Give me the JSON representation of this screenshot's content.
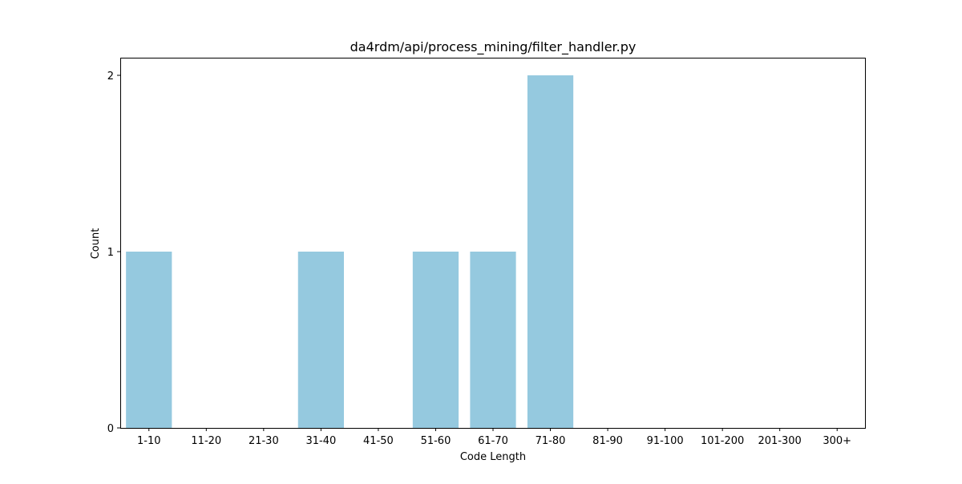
{
  "chart_data": {
    "type": "bar",
    "title": "da4rdm/api/process_mining/filter_handler.py",
    "xlabel": "Code Length",
    "ylabel": "Count",
    "categories": [
      "1-10",
      "11-20",
      "21-30",
      "31-40",
      "41-50",
      "51-60",
      "61-70",
      "71-80",
      "81-90",
      "91-100",
      "101-200",
      "201-300",
      "300+"
    ],
    "values": [
      1,
      0,
      0,
      1,
      0,
      1,
      1,
      2,
      0,
      0,
      0,
      0,
      0
    ],
    "ylim": [
      0,
      2.1
    ],
    "yticks": [
      0,
      1,
      2
    ],
    "grid": false,
    "bar_color": "#95c9df"
  }
}
